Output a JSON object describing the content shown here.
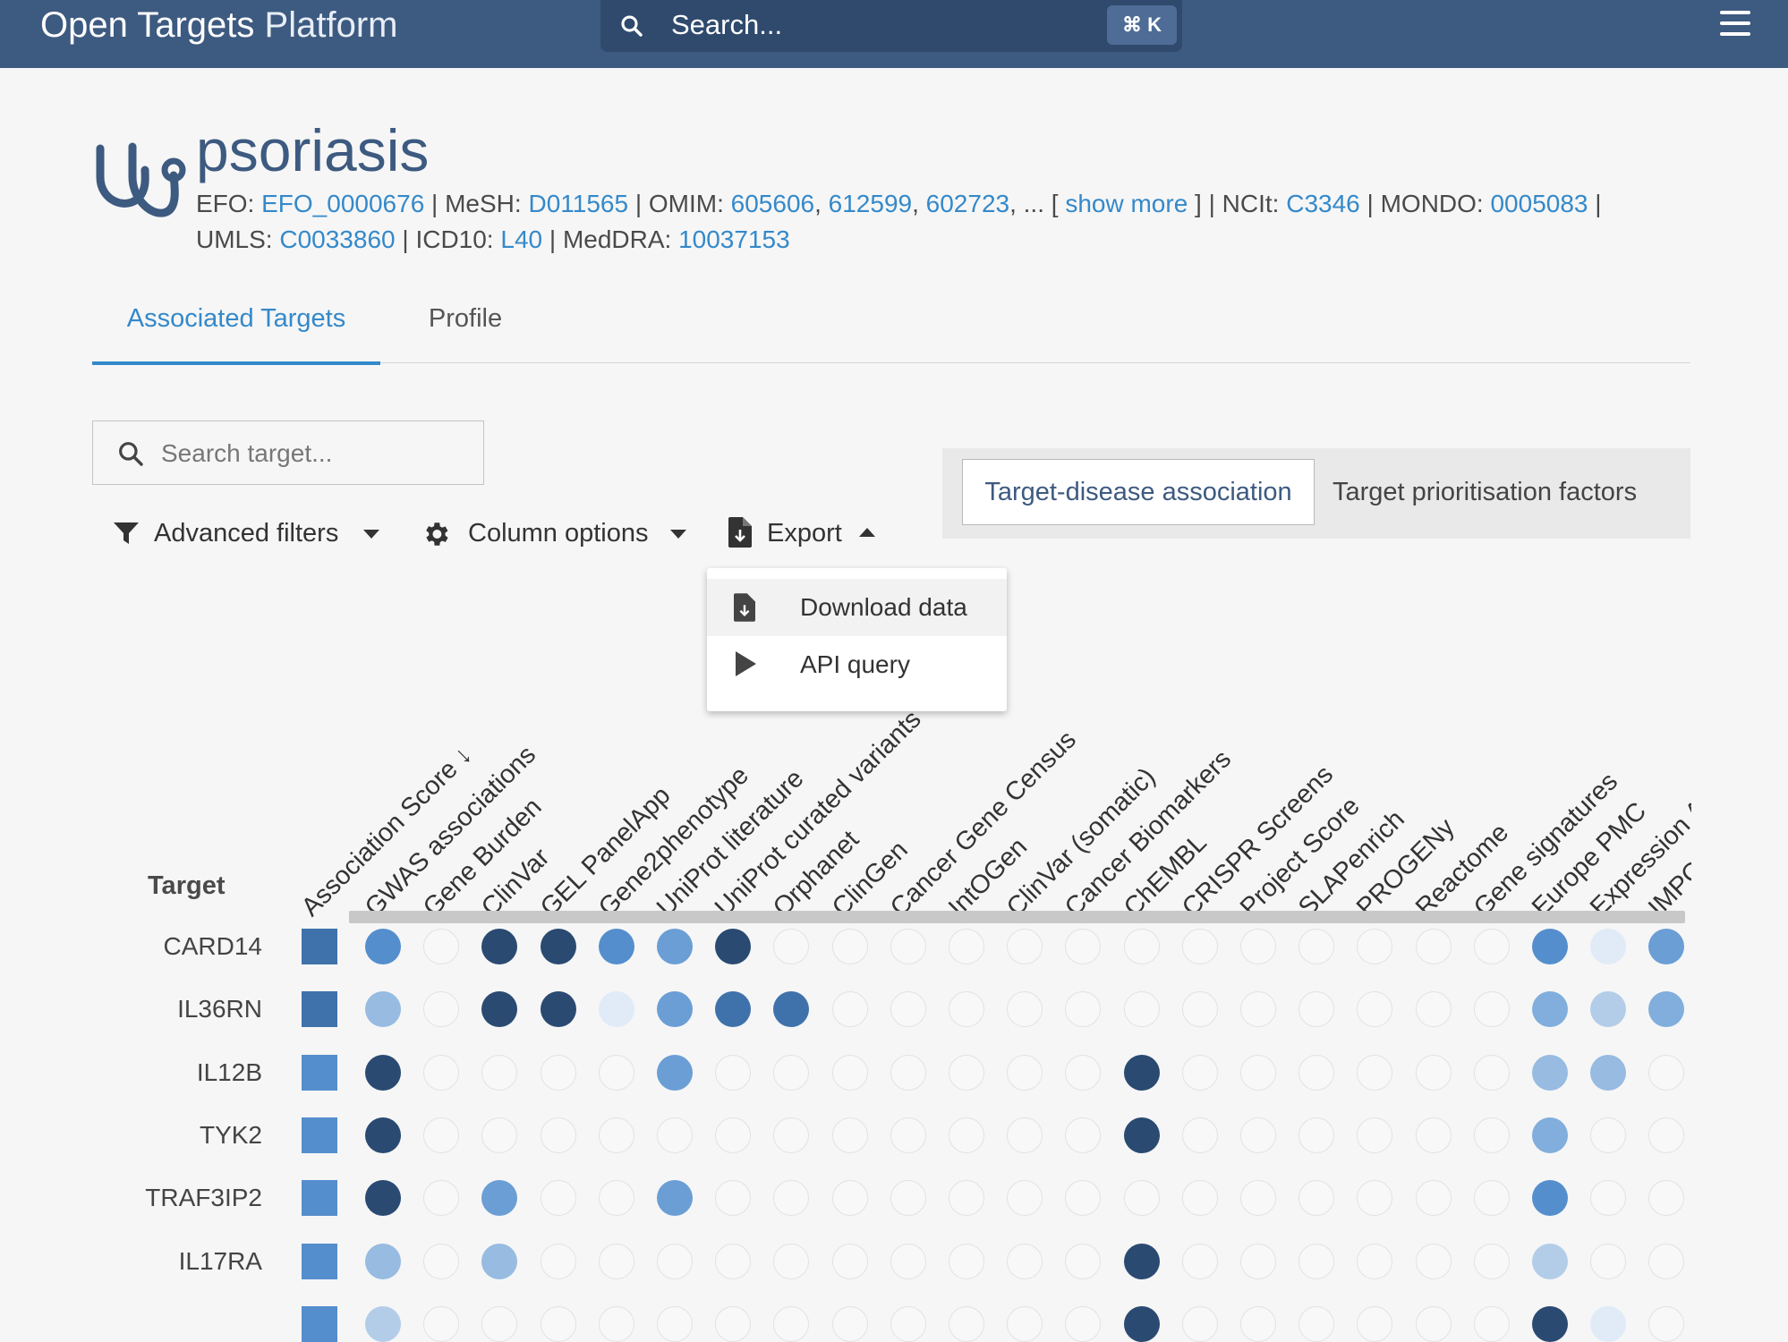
{
  "topbar": {
    "brand_bold": "Open Targets",
    "brand_light": "Platform",
    "search_placeholder": "Search...",
    "shortcut": "⌘ K",
    "icons": {
      "search": "search-icon",
      "menu": "hamburger-menu-icon"
    }
  },
  "disease": {
    "name": "psoriasis",
    "icon": "stethoscope-icon",
    "xrefs_line1": [
      {
        "label": "EFO: ",
        "links": [
          "EFO_0000676"
        ]
      },
      {
        "label": "MeSH: ",
        "links": [
          "D011565"
        ]
      },
      {
        "label": "OMIM: ",
        "links": [
          "605606",
          "612599",
          "602723"
        ],
        "more": "show more"
      },
      {
        "label": "NCIt: ",
        "links": [
          "C3346"
        ]
      },
      {
        "label": "MONDO: ",
        "links": [
          "0005083"
        ]
      }
    ],
    "xrefs_line2": [
      {
        "label": "UMLS: ",
        "links": [
          "C0033860"
        ]
      },
      {
        "label": "ICD10: ",
        "links": [
          "L40"
        ]
      },
      {
        "label": "MedDRA: ",
        "links": [
          "10037153"
        ]
      }
    ]
  },
  "tabs": {
    "associated": "Associated Targets",
    "profile": "Profile"
  },
  "target_search": {
    "placeholder": "Search target..."
  },
  "toolbar": {
    "filters": "Advanced filters",
    "columns": "Column options",
    "export": "Export"
  },
  "view_toggle": {
    "association": "Target-disease association",
    "prioritisation": "Target prioritisation factors"
  },
  "export_menu": {
    "download": "Download data",
    "api": "API query"
  },
  "table": {
    "target_header": "Target",
    "columns": [
      "Association Score ↓",
      "GWAS associations",
      "Gene Burden",
      "ClinVar",
      "GEL PanelApp",
      "Gene2phenotype",
      "UniProt literature",
      "UniProt curated variants",
      "Orphanet",
      "ClinGen",
      "Cancer Gene Census",
      "IntOGen",
      "ClinVar (somatic)",
      "Cancer Biomarkers",
      "ChEMBL",
      "CRISPR Screens",
      "Project Score",
      "SLAPenrich",
      "PROGENy",
      "Reactome",
      "Gene signatures",
      "Europe PMC",
      "Expression Atlas",
      "IMPC"
    ],
    "colors": {
      "empty": "#f8f8f8",
      "levels": [
        "#f8f8f8",
        "#e0ebf7",
        "#b3cde9",
        "#97bbe1",
        "#81aedc",
        "#6a9ed5",
        "#558ecd",
        "#3f72ab",
        "#2e5786",
        "#2a4a72"
      ]
    },
    "rows": [
      {
        "target": "CARD14",
        "score": 7,
        "cells": [
          6,
          0,
          9,
          9,
          6,
          5,
          9,
          0,
          0,
          0,
          0,
          0,
          0,
          0,
          0,
          0,
          0,
          0,
          0,
          0,
          6,
          1,
          5
        ]
      },
      {
        "target": "IL36RN",
        "score": 7,
        "cells": [
          3,
          0,
          9,
          9,
          1,
          5,
          7,
          7,
          0,
          0,
          0,
          0,
          0,
          0,
          0,
          0,
          0,
          0,
          0,
          0,
          4,
          2,
          4
        ]
      },
      {
        "target": "IL12B",
        "score": 6,
        "cells": [
          9,
          0,
          0,
          0,
          0,
          5,
          0,
          0,
          0,
          0,
          0,
          0,
          0,
          9,
          0,
          0,
          0,
          0,
          0,
          0,
          3,
          3,
          0
        ]
      },
      {
        "target": "TYK2",
        "score": 6,
        "cells": [
          9,
          0,
          0,
          0,
          0,
          0,
          0,
          0,
          0,
          0,
          0,
          0,
          0,
          9,
          0,
          0,
          0,
          0,
          0,
          0,
          4,
          0,
          0
        ]
      },
      {
        "target": "TRAF3IP2",
        "score": 6,
        "cells": [
          9,
          0,
          5,
          0,
          0,
          5,
          0,
          0,
          0,
          0,
          0,
          0,
          0,
          0,
          0,
          0,
          0,
          0,
          0,
          0,
          6,
          0,
          0
        ]
      },
      {
        "target": "IL17RA",
        "score": 6,
        "cells": [
          3,
          0,
          3,
          0,
          0,
          0,
          0,
          0,
          0,
          0,
          0,
          0,
          0,
          9,
          0,
          0,
          0,
          0,
          0,
          0,
          2,
          0,
          0
        ]
      },
      {
        "target": "",
        "score": 6,
        "cells": [
          2,
          0,
          0,
          0,
          0,
          0,
          0,
          0,
          0,
          0,
          0,
          0,
          0,
          9,
          0,
          0,
          0,
          0,
          0,
          0,
          9,
          1,
          0
        ]
      }
    ]
  }
}
